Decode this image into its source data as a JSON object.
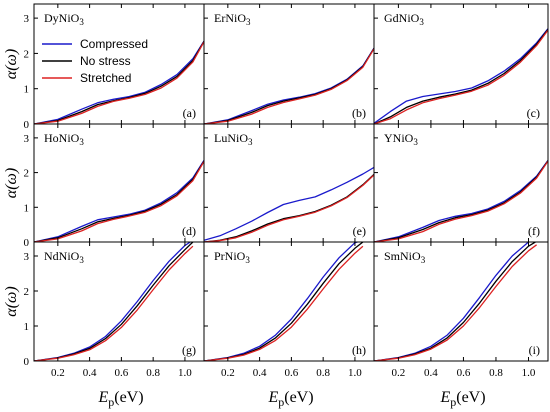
{
  "chart_data": {
    "type": "line",
    "layout": "3x3 grid of panels",
    "xlabel": "Ep(eV)",
    "xlabel_main": "E",
    "xlabel_sub": "p",
    "xlabel_unit": "(eV)",
    "ylabel": "α(ω)",
    "xlim": [
      0.05,
      1.12
    ],
    "xticks": [
      0.2,
      0.4,
      0.6,
      0.8,
      1.0
    ],
    "xtick_labels": [
      "0.2",
      "0.4",
      "0.6",
      "0.8",
      "1.0"
    ],
    "legend": {
      "placement": "top-left of panel (a)",
      "entries": [
        {
          "name": "Compressed",
          "color": "#1a1acc"
        },
        {
          "name": "No stress",
          "color": "#000000"
        },
        {
          "name": "Stretched",
          "color": "#dd2222"
        }
      ]
    },
    "series_colors": {
      "Compressed": "#1a1acc",
      "No stress": "#000000",
      "Stretched": "#dd2222"
    },
    "rows": [
      {
        "ylim": [
          0,
          3.4
        ],
        "yticks": [
          0,
          1,
          2,
          3
        ],
        "ytick_labels": [
          "0",
          "1",
          "2",
          "3"
        ],
        "panels": [
          {
            "compound": "DyNiO",
            "subscript": "3",
            "tag": "(a)",
            "x": [
              0.05,
              0.2,
              0.35,
              0.45,
              0.55,
              0.65,
              0.75,
              0.85,
              0.95,
              1.05,
              1.12
            ],
            "series": [
              {
                "name": "Compressed",
                "values": [
                  0.0,
                  0.13,
                  0.42,
                  0.6,
                  0.7,
                  0.78,
                  0.9,
                  1.12,
                  1.4,
                  1.85,
                  2.35
                ]
              },
              {
                "name": "No stress",
                "values": [
                  0.0,
                  0.1,
                  0.35,
                  0.55,
                  0.66,
                  0.75,
                  0.87,
                  1.07,
                  1.35,
                  1.8,
                  2.34
                ]
              },
              {
                "name": "Stretched",
                "values": [
                  0.0,
                  0.08,
                  0.3,
                  0.5,
                  0.64,
                  0.73,
                  0.84,
                  1.02,
                  1.3,
                  1.76,
                  2.33
                ]
              }
            ]
          },
          {
            "compound": "ErNiO",
            "subscript": "3",
            "tag": "(b)",
            "x": [
              0.05,
              0.2,
              0.35,
              0.45,
              0.55,
              0.65,
              0.75,
              0.85,
              0.95,
              1.05,
              1.12
            ],
            "series": [
              {
                "name": "Compressed",
                "values": [
                  0.0,
                  0.12,
                  0.38,
                  0.56,
                  0.68,
                  0.76,
                  0.86,
                  1.02,
                  1.27,
                  1.65,
                  2.15
                ]
              },
              {
                "name": "No stress",
                "values": [
                  0.0,
                  0.1,
                  0.33,
                  0.52,
                  0.65,
                  0.74,
                  0.84,
                  1.0,
                  1.25,
                  1.63,
                  2.14
                ]
              },
              {
                "name": "Stretched",
                "values": [
                  0.0,
                  0.08,
                  0.28,
                  0.47,
                  0.61,
                  0.71,
                  0.82,
                  0.98,
                  1.23,
                  1.61,
                  2.13
                ]
              }
            ]
          },
          {
            "compound": "GdNiO",
            "subscript": "3",
            "tag": "(c)",
            "x": [
              0.05,
              0.15,
              0.25,
              0.35,
              0.45,
              0.55,
              0.65,
              0.75,
              0.85,
              0.95,
              1.05,
              1.12
            ],
            "series": [
              {
                "name": "Compressed",
                "values": [
                  0.02,
                  0.35,
                  0.65,
                  0.78,
                  0.85,
                  0.92,
                  1.02,
                  1.22,
                  1.5,
                  1.85,
                  2.3,
                  2.7
                ]
              },
              {
                "name": "No stress",
                "values": [
                  0.0,
                  0.2,
                  0.47,
                  0.65,
                  0.76,
                  0.85,
                  0.96,
                  1.15,
                  1.43,
                  1.8,
                  2.26,
                  2.68
                ]
              },
              {
                "name": "Stretched",
                "values": [
                  0.0,
                  0.15,
                  0.4,
                  0.6,
                  0.72,
                  0.82,
                  0.93,
                  1.1,
                  1.38,
                  1.75,
                  2.22,
                  2.66
                ]
              }
            ]
          }
        ]
      },
      {
        "ylim": [
          0,
          3.4
        ],
        "yticks": [
          0,
          1,
          2,
          3
        ],
        "ytick_labels": [
          "0",
          "1",
          "2",
          "3"
        ],
        "panels": [
          {
            "compound": "HoNiO",
            "subscript": "3",
            "tag": "(d)",
            "x": [
              0.05,
              0.2,
              0.35,
              0.45,
              0.55,
              0.65,
              0.75,
              0.85,
              0.95,
              1.05,
              1.12
            ],
            "series": [
              {
                "name": "Compressed",
                "values": [
                  0.0,
                  0.15,
                  0.45,
                  0.64,
                  0.72,
                  0.8,
                  0.92,
                  1.13,
                  1.42,
                  1.85,
                  2.35
                ]
              },
              {
                "name": "No stress",
                "values": [
                  0.0,
                  0.12,
                  0.38,
                  0.58,
                  0.68,
                  0.77,
                  0.89,
                  1.09,
                  1.37,
                  1.81,
                  2.33
                ]
              },
              {
                "name": "Stretched",
                "values": [
                  0.0,
                  0.09,
                  0.32,
                  0.53,
                  0.65,
                  0.75,
                  0.86,
                  1.05,
                  1.33,
                  1.77,
                  2.32
                ]
              }
            ]
          },
          {
            "compound": "LuNiO",
            "subscript": "3",
            "tag": "(e)",
            "x": [
              0.05,
              0.15,
              0.25,
              0.35,
              0.45,
              0.55,
              0.65,
              0.75,
              0.85,
              0.95,
              1.05,
              1.12
            ],
            "series": [
              {
                "name": "Compressed",
                "values": [
                  0.05,
                  0.18,
                  0.38,
                  0.6,
                  0.85,
                  1.08,
                  1.2,
                  1.3,
                  1.5,
                  1.72,
                  1.96,
                  2.15
                ]
              },
              {
                "name": "No stress",
                "values": [
                  0.0,
                  0.05,
                  0.15,
                  0.32,
                  0.52,
                  0.67,
                  0.76,
                  0.88,
                  1.06,
                  1.3,
                  1.65,
                  1.95
                ]
              },
              {
                "name": "Stretched",
                "values": [
                  0.0,
                  0.04,
                  0.12,
                  0.28,
                  0.48,
                  0.64,
                  0.74,
                  0.86,
                  1.04,
                  1.28,
                  1.63,
                  1.93
                ]
              }
            ]
          },
          {
            "compound": "YNiO",
            "subscript": "3",
            "tag": "(f)",
            "x": [
              0.05,
              0.2,
              0.35,
              0.45,
              0.55,
              0.65,
              0.75,
              0.85,
              0.95,
              1.05,
              1.12
            ],
            "series": [
              {
                "name": "Compressed",
                "values": [
                  0.0,
                  0.15,
                  0.42,
                  0.62,
                  0.74,
                  0.82,
                  0.95,
                  1.17,
                  1.48,
                  1.9,
                  2.35
                ]
              },
              {
                "name": "No stress",
                "values": [
                  0.0,
                  0.12,
                  0.36,
                  0.56,
                  0.7,
                  0.79,
                  0.92,
                  1.13,
                  1.44,
                  1.87,
                  2.34
                ]
              },
              {
                "name": "Stretched",
                "values": [
                  0.0,
                  0.09,
                  0.3,
                  0.51,
                  0.66,
                  0.76,
                  0.89,
                  1.1,
                  1.41,
                  1.84,
                  2.33
                ]
              }
            ]
          }
        ]
      },
      {
        "ylim": [
          0,
          3.4
        ],
        "yticks": [
          0,
          1,
          2,
          3
        ],
        "ytick_labels": [
          "0",
          "1",
          "2",
          "3"
        ],
        "panels": [
          {
            "compound": "NdNiO",
            "subscript": "3",
            "tag": "(g)",
            "x": [
              0.05,
              0.2,
              0.3,
              0.4,
              0.5,
              0.6,
              0.7,
              0.8,
              0.9,
              1.0,
              1.05
            ],
            "series": [
              {
                "name": "Compressed",
                "values": [
                  0.0,
                  0.1,
                  0.22,
                  0.4,
                  0.7,
                  1.15,
                  1.7,
                  2.3,
                  2.85,
                  3.3,
                  3.45
                ]
              },
              {
                "name": "No stress",
                "values": [
                  0.0,
                  0.09,
                  0.2,
                  0.36,
                  0.64,
                  1.05,
                  1.58,
                  2.17,
                  2.72,
                  3.18,
                  3.4
                ]
              },
              {
                "name": "Stretched",
                "values": [
                  0.0,
                  0.08,
                  0.18,
                  0.32,
                  0.58,
                  0.96,
                  1.46,
                  2.04,
                  2.6,
                  3.07,
                  3.28
                ]
              }
            ]
          },
          {
            "compound": "PrNiO",
            "subscript": "3",
            "tag": "(h)",
            "x": [
              0.05,
              0.2,
              0.3,
              0.4,
              0.5,
              0.6,
              0.7,
              0.8,
              0.9,
              1.0,
              1.05
            ],
            "series": [
              {
                "name": "Compressed",
                "values": [
                  0.0,
                  0.1,
                  0.22,
                  0.42,
                  0.74,
                  1.2,
                  1.78,
                  2.4,
                  2.95,
                  3.38,
                  3.45
                ]
              },
              {
                "name": "No stress",
                "values": [
                  0.0,
                  0.09,
                  0.19,
                  0.37,
                  0.66,
                  1.08,
                  1.62,
                  2.22,
                  2.78,
                  3.22,
                  3.4
                ]
              },
              {
                "name": "Stretched",
                "values": [
                  0.0,
                  0.08,
                  0.17,
                  0.33,
                  0.59,
                  0.97,
                  1.48,
                  2.06,
                  2.62,
                  3.08,
                  3.28
                ]
              }
            ]
          },
          {
            "compound": "SmNiO",
            "subscript": "3",
            "tag": "(i)",
            "x": [
              0.05,
              0.2,
              0.3,
              0.4,
              0.5,
              0.6,
              0.7,
              0.8,
              0.9,
              1.0,
              1.05
            ],
            "series": [
              {
                "name": "Compressed",
                "values": [
                  0.0,
                  0.1,
                  0.22,
                  0.42,
                  0.74,
                  1.22,
                  1.82,
                  2.45,
                  3.0,
                  3.4,
                  3.45
                ]
              },
              {
                "name": "No stress",
                "values": [
                  0.0,
                  0.09,
                  0.2,
                  0.37,
                  0.66,
                  1.1,
                  1.66,
                  2.28,
                  2.84,
                  3.28,
                  3.42
                ]
              },
              {
                "name": "Stretched",
                "values": [
                  0.0,
                  0.08,
                  0.18,
                  0.34,
                  0.6,
                  1.0,
                  1.53,
                  2.13,
                  2.7,
                  3.15,
                  3.32
                ]
              }
            ]
          }
        ]
      }
    ]
  }
}
